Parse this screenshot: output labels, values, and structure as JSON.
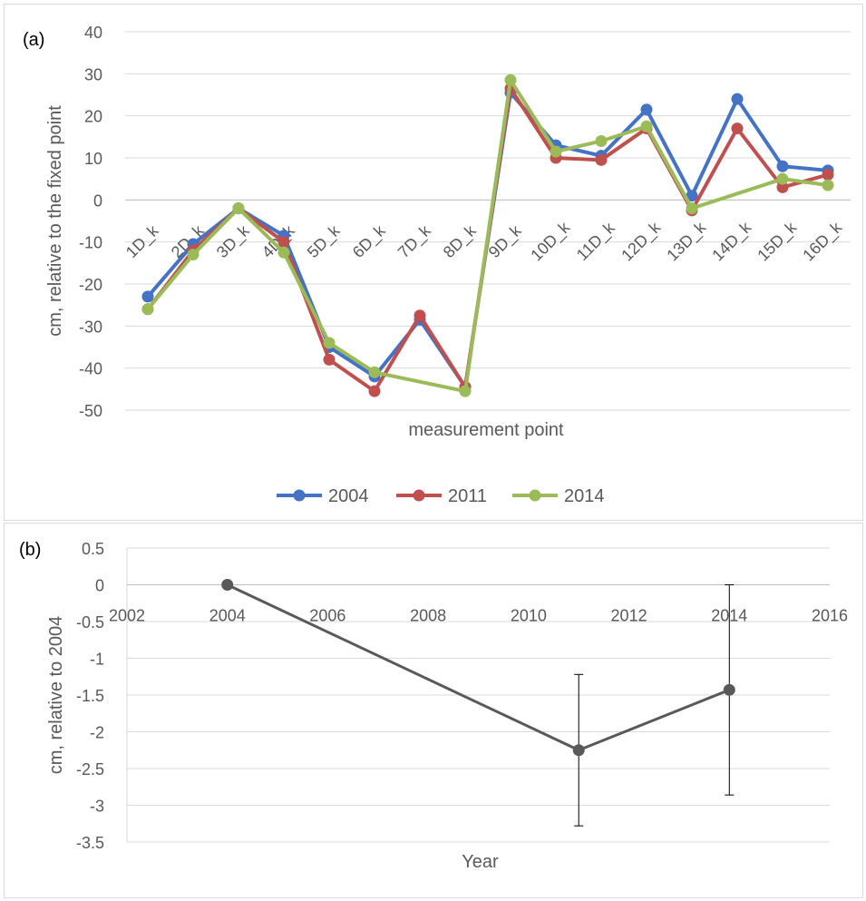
{
  "panel_a": {
    "label": "(a)",
    "chart_data": {
      "type": "line",
      "ylabel": "cm, relative to the fixed point",
      "xlabel": "measurement point",
      "ylim": [
        -50,
        40
      ],
      "ytick_step": 10,
      "grid": true,
      "legend_position": "bottom",
      "categories": [
        "1D_k",
        "2D_k",
        "3D_k",
        "4D_k",
        "5D_k",
        "6D_k",
        "7D_k",
        "8D_k",
        "9D_k",
        "10D_k",
        "11D_k",
        "12D_k",
        "13D_k",
        "14D_k",
        "15D_k",
        "16D_k"
      ],
      "series": [
        {
          "name": "2004",
          "color": "#4472c4",
          "values": [
            -23,
            -10.5,
            -2,
            -8.5,
            -35,
            -42,
            -28.5,
            -44.5,
            25.5,
            13,
            10.5,
            21.5,
            1,
            24,
            8,
            7
          ]
        },
        {
          "name": "2011",
          "color": "#c0504d",
          "values": [
            -26,
            -12,
            -2,
            -10,
            -38,
            -45.5,
            -27.5,
            -44.5,
            26.5,
            10,
            9.5,
            17,
            -2.5,
            17,
            3,
            6
          ]
        },
        {
          "name": "2014",
          "color": "#9bbb59",
          "values": [
            -26,
            -13,
            -2,
            -12.5,
            -34,
            -41,
            null,
            -45.5,
            28.5,
            11.5,
            14,
            17.5,
            -2,
            null,
            5,
            3.5
          ]
        }
      ]
    }
  },
  "panel_b": {
    "label": "(b)",
    "chart_data": {
      "type": "scatter",
      "ylabel": "cm, relative to 2004",
      "xlabel": "Year",
      "xlim": [
        2002,
        2016
      ],
      "xtick_step": 2,
      "ylim": [
        -3.5,
        0.5
      ],
      "ytick_step": 0.5,
      "grid": true,
      "color": "#595959",
      "points": [
        {
          "x": 2004,
          "y": 0,
          "err": null
        },
        {
          "x": 2011,
          "y": -2.25,
          "err": 1.03
        },
        {
          "x": 2014,
          "y": -1.43,
          "err": 1.43
        }
      ]
    }
  }
}
